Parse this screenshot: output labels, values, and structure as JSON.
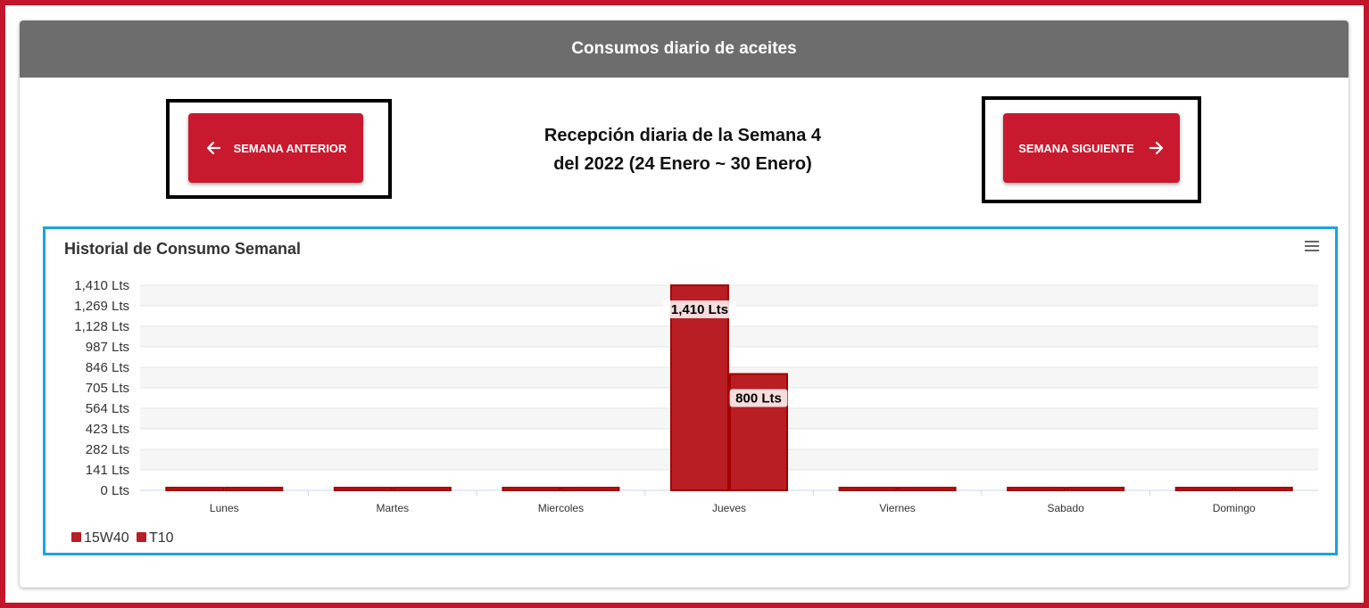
{
  "header": {
    "title": "Consumos diario de aceites"
  },
  "nav": {
    "prev_label": "SEMANA ANTERIOR",
    "next_label": "SEMANA SIGUIENTE",
    "week_line1": "Recepción diaria de la Semana 4",
    "week_line2": "del 2022 (24 Enero ~ 30 Enero)"
  },
  "colors": {
    "brand": "#c8192e",
    "frame": "#c0152a",
    "header": "#6d6d6d",
    "chart_border": "#1aa3e0"
  },
  "icons": {
    "prev": "arrow-left-icon",
    "next": "arrow-right-icon",
    "menu": "hamburger-menu-icon"
  },
  "chart_data": {
    "type": "bar",
    "title": "Historial de Consumo Semanal",
    "categories": [
      "Lunes",
      "Martes",
      "Miercoles",
      "Jueves",
      "Viernes",
      "Sabado",
      "Domingo"
    ],
    "series": [
      {
        "name": "15W40",
        "values": [
          0,
          0,
          0,
          1410,
          0,
          0,
          0
        ],
        "color": "#b81e24"
      },
      {
        "name": "T10",
        "values": [
          0,
          0,
          0,
          800,
          0,
          0,
          0
        ],
        "color": "#b81e24"
      }
    ],
    "data_labels": [
      "1,410 Lts",
      "800 Lts"
    ],
    "yticks": [
      "0 Lts",
      "141 Lts",
      "282 Lts",
      "423 Lts",
      "564 Lts",
      "705 Lts",
      "846 Lts",
      "987 Lts",
      "1,128 Lts",
      "1,269 Lts",
      "1,410 Lts"
    ],
    "ytick_values": [
      0,
      141,
      282,
      423,
      564,
      705,
      846,
      987,
      1128,
      1269,
      1410
    ],
    "ylim": [
      0,
      1410
    ],
    "legend_position": "bottom-left",
    "grid": true
  }
}
